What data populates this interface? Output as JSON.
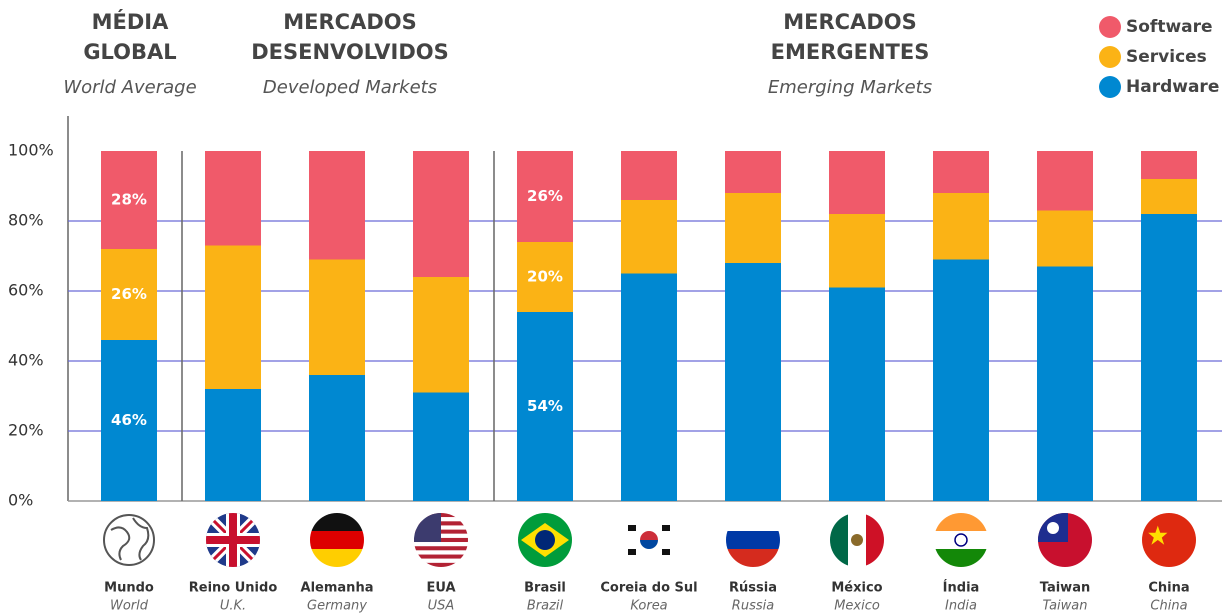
{
  "chart_data": {
    "type": "stacked-bar",
    "groups": [
      {
        "title": [
          "MÉDIA",
          "GLOBAL"
        ],
        "subtitle": "World Average"
      },
      {
        "title": [
          "MERCADOS",
          "DESENVOLVIDOS"
        ],
        "subtitle": "Developed Markets"
      },
      {
        "title": [
          "MERCADOS",
          "EMERGENTES"
        ],
        "subtitle": "Emerging Markets"
      }
    ],
    "categories": [
      "Mundo",
      "Reino Unido",
      "Alemanha",
      "EUA",
      "Brasil",
      "Coreia do Sul",
      "Rússia",
      "México",
      "Índia",
      "Taiwan",
      "China"
    ],
    "category_translations": [
      "World",
      "U.K.",
      "Germany",
      "USA",
      "Brazil",
      "Korea",
      "Russia",
      "Mexico",
      "India",
      "Taiwan",
      "China"
    ],
    "series": [
      {
        "name": "Hardware",
        "color": "#0088d1",
        "values": [
          46,
          32,
          36,
          31,
          54,
          65,
          68,
          61,
          69,
          67,
          82
        ],
        "value_labels": [
          "46%",
          null,
          null,
          null,
          "54%",
          null,
          null,
          null,
          null,
          null,
          null
        ]
      },
      {
        "name": "Services",
        "color": "#fbb315",
        "values": [
          26,
          41,
          33,
          33,
          20,
          21,
          20,
          21,
          19,
          16,
          10
        ],
        "value_labels": [
          "26%",
          null,
          null,
          null,
          "20%",
          null,
          null,
          null,
          null,
          null,
          null
        ]
      },
      {
        "name": "Software",
        "color": "#f05a6a",
        "values": [
          28,
          27,
          31,
          36,
          26,
          14,
          12,
          18,
          12,
          17,
          8
        ],
        "value_labels": [
          "28%",
          null,
          null,
          null,
          "26%",
          null,
          null,
          null,
          null,
          null,
          null
        ]
      }
    ],
    "ylim": [
      0,
      110
    ],
    "yticks": [
      {
        "value": 0,
        "label": "0%"
      },
      {
        "value": 20,
        "label": "20%"
      },
      {
        "value": 40,
        "label": "40%"
      },
      {
        "value": 60,
        "label": "60%"
      },
      {
        "value": 80,
        "label": "80%"
      },
      {
        "value": 100,
        "label": "100%"
      }
    ],
    "grid": true,
    "legend": "top-right"
  }
}
